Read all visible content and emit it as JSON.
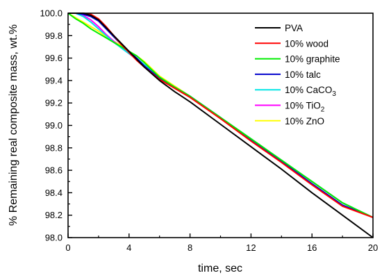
{
  "chart_data": {
    "type": "line",
    "title": "",
    "xlabel": "time, sec",
    "ylabel": "% Remaining real composite mass, wt.%",
    "xlim": [
      0,
      20
    ],
    "ylim": [
      98.0,
      100.0
    ],
    "x_ticks": [
      0,
      4,
      8,
      12,
      16,
      20
    ],
    "y_ticks": [
      98.0,
      98.2,
      98.4,
      98.6,
      98.8,
      99.0,
      99.2,
      99.4,
      99.6,
      99.8,
      100.0
    ],
    "grid": false,
    "legend_position": "top-right",
    "series": [
      {
        "name": "PVA",
        "color": "#000000",
        "x": [
          0,
          0.5,
          1,
          1.5,
          2,
          2.5,
          3,
          3.5,
          4,
          4.5,
          5,
          6,
          7,
          8,
          10,
          12,
          14,
          16,
          18,
          20
        ],
        "y": [
          100.0,
          100.0,
          100.0,
          99.98,
          99.94,
          99.87,
          99.8,
          99.73,
          99.66,
          99.59,
          99.52,
          99.4,
          99.3,
          99.21,
          99.01,
          98.81,
          98.61,
          98.4,
          98.2,
          98.0
        ]
      },
      {
        "name": "10% wood",
        "color": "#ff0000",
        "x": [
          0,
          0.5,
          1,
          1.5,
          2,
          2.5,
          3,
          3.5,
          4,
          4.5,
          5,
          6,
          7,
          8,
          10,
          12,
          14,
          16,
          18,
          20
        ],
        "y": [
          100.0,
          100.0,
          100.0,
          99.99,
          99.95,
          99.88,
          99.8,
          99.72,
          99.65,
          99.58,
          99.52,
          99.41,
          99.33,
          99.25,
          99.06,
          98.86,
          98.67,
          98.47,
          98.28,
          98.18
        ]
      },
      {
        "name": "10% graphite",
        "color": "#00ee00",
        "x": [
          0,
          0.5,
          1,
          1.5,
          2,
          2.5,
          3,
          3.5,
          4,
          4.5,
          5,
          6,
          7,
          8,
          10,
          12,
          14,
          16,
          18,
          20
        ],
        "y": [
          100.0,
          99.95,
          99.91,
          99.86,
          99.82,
          99.78,
          99.74,
          99.7,
          99.66,
          99.62,
          99.56,
          99.43,
          99.34,
          99.26,
          99.07,
          98.88,
          98.69,
          98.5,
          98.31,
          98.18
        ]
      },
      {
        "name": "10% talc",
        "color": "#0000cc",
        "x": [
          0,
          0.5,
          1,
          1.5,
          2,
          2.5,
          3,
          3.5,
          4,
          4.5,
          5,
          6,
          7,
          8,
          10,
          12,
          14,
          16,
          18,
          20
        ],
        "y": [
          100.0,
          100.0,
          99.99,
          99.97,
          99.93,
          99.86,
          99.79,
          99.72,
          99.66,
          99.6,
          99.53,
          99.42,
          99.34,
          99.26,
          99.07,
          98.87,
          98.68,
          98.48,
          98.29,
          98.18
        ]
      },
      {
        "name": "10% CaCO3",
        "color": "#00e5e5",
        "x": [
          0,
          0.5,
          1,
          1.5,
          2,
          2.5,
          3,
          3.5,
          4,
          4.5,
          5,
          6,
          7,
          8,
          10,
          12,
          14,
          16,
          18,
          20
        ],
        "y": [
          100.0,
          100.0,
          99.97,
          99.92,
          99.86,
          99.8,
          99.74,
          99.69,
          99.64,
          99.6,
          99.54,
          99.43,
          99.34,
          99.26,
          99.07,
          98.88,
          98.69,
          98.5,
          98.31,
          98.18
        ]
      },
      {
        "name": "10% TiO2",
        "color": "#ff00ff",
        "x": [
          0,
          0.5,
          1,
          1.5,
          2,
          2.5,
          3,
          3.5,
          4,
          4.5,
          5,
          6,
          7,
          8,
          10,
          12,
          14,
          16,
          18,
          20
        ],
        "y": [
          100.0,
          100.0,
          99.98,
          99.94,
          99.88,
          99.81,
          99.75,
          99.69,
          99.64,
          99.59,
          99.54,
          99.43,
          99.34,
          99.26,
          99.07,
          98.88,
          98.69,
          98.5,
          98.31,
          98.18
        ]
      },
      {
        "name": "10% ZnO",
        "color": "#ffff00",
        "x": [
          0,
          0.5,
          1,
          1.5,
          2,
          2.5,
          3,
          3.5,
          4,
          4.5,
          5,
          6,
          7,
          8,
          10,
          12,
          14,
          16,
          18,
          20
        ],
        "y": [
          100.0,
          99.96,
          99.92,
          99.88,
          99.84,
          99.79,
          99.75,
          99.71,
          99.66,
          99.62,
          99.57,
          99.44,
          99.35,
          99.26,
          99.07,
          98.88,
          98.69,
          98.5,
          98.31,
          98.18
        ]
      }
    ]
  },
  "legend": {
    "items": [
      {
        "prefix": "PVA",
        "sub": "",
        "suffix": "",
        "color": "#000000"
      },
      {
        "prefix": "10% wood",
        "sub": "",
        "suffix": "",
        "color": "#ff0000"
      },
      {
        "prefix": "10% graphite",
        "sub": "",
        "suffix": "",
        "color": "#00ee00"
      },
      {
        "prefix": "10% talc",
        "sub": "",
        "suffix": "",
        "color": "#0000cc"
      },
      {
        "prefix": "10% CaCO",
        "sub": "3",
        "suffix": "",
        "color": "#00e5e5"
      },
      {
        "prefix": "10% TiO",
        "sub": "2",
        "suffix": "",
        "color": "#ff00ff"
      },
      {
        "prefix": "10% ZnO",
        "sub": "",
        "suffix": "",
        "color": "#ffff00"
      }
    ]
  }
}
